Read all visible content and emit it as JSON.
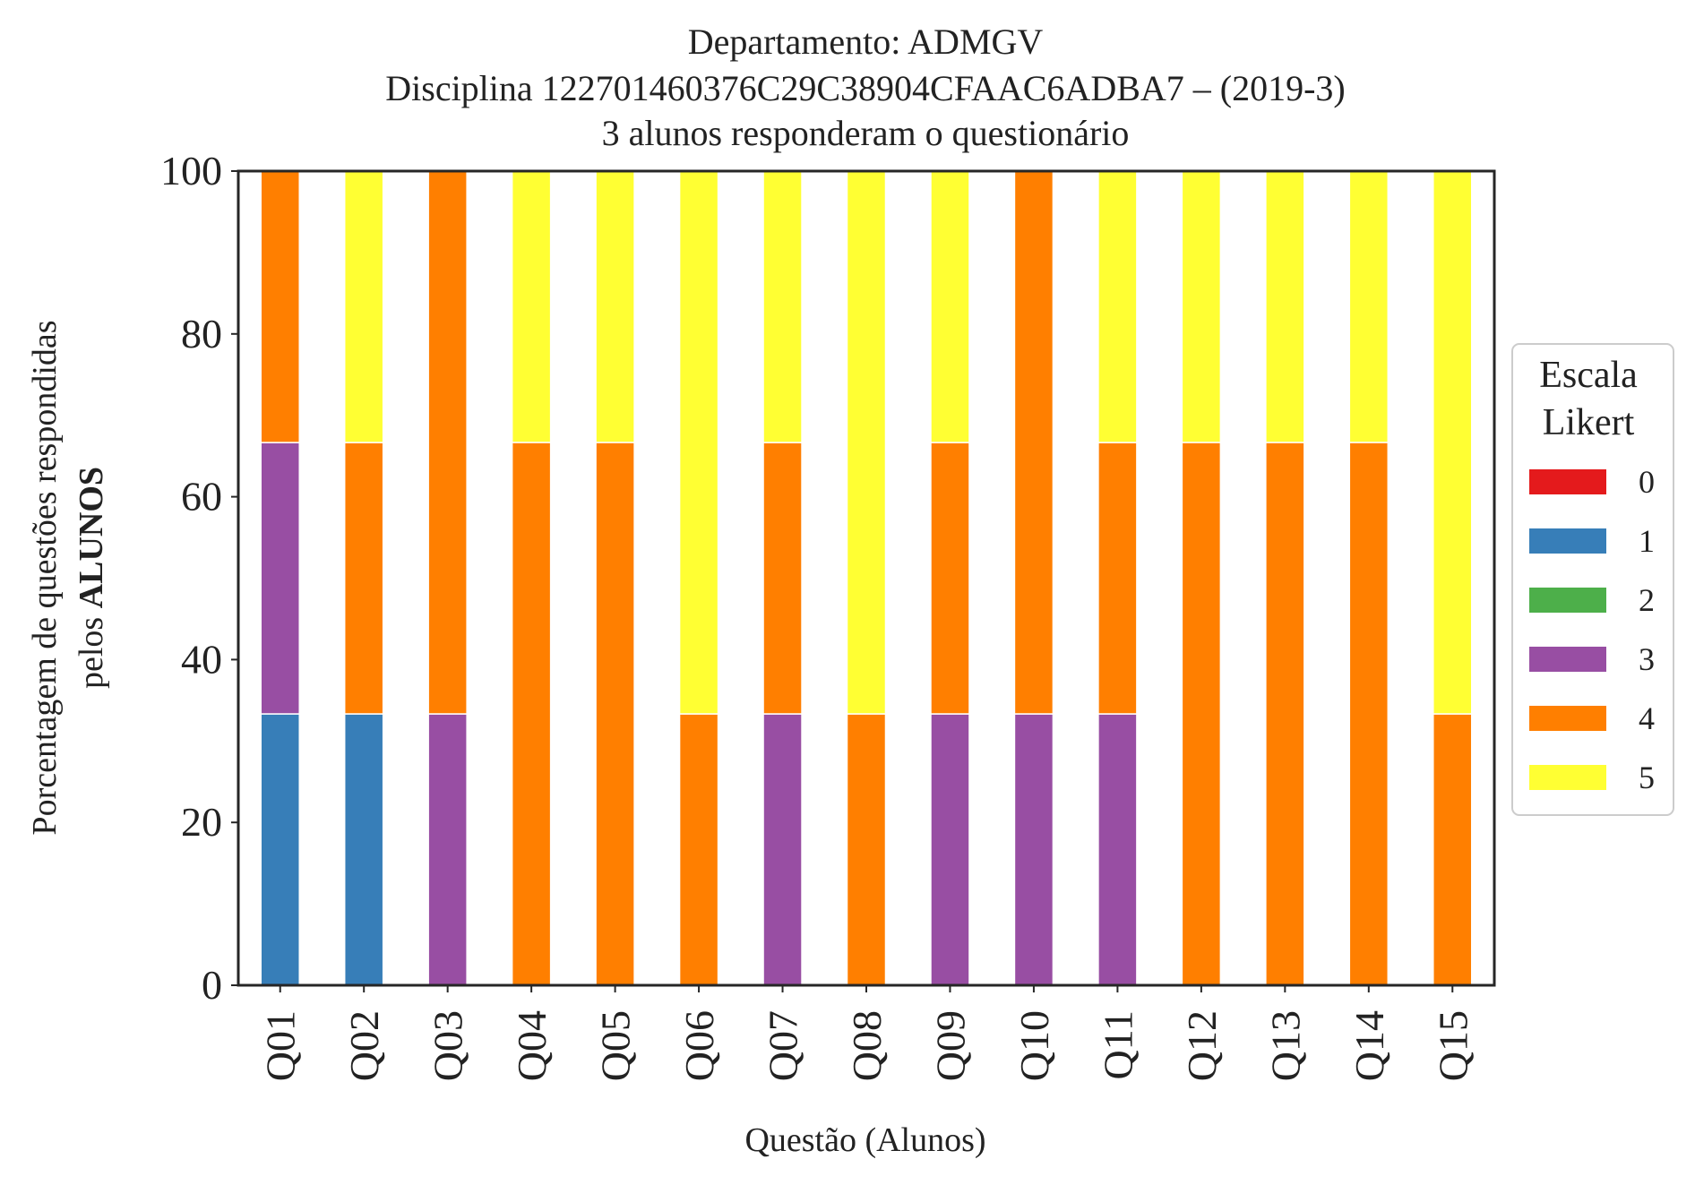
{
  "chart_data": {
    "type": "bar",
    "stacked": true,
    "title": {
      "line1": "Departamento: ADMGV",
      "line2": "Disciplina 122701460376C29C38904CFAAC6ADBA7 – (2019-3)",
      "line3": "3 alunos responderam o questionário"
    },
    "xlabel": "Questão (Alunos)",
    "ylabel": {
      "line1": "Porcentagem de questões respondidas",
      "line2_prefix": "pelos ",
      "line2_bold": "ALUNOS"
    },
    "ylim": [
      0,
      100
    ],
    "yticks": [
      "0",
      "20",
      "40",
      "60",
      "80",
      "100"
    ],
    "categories": [
      "Q01",
      "Q02",
      "Q03",
      "Q04",
      "Q05",
      "Q06",
      "Q07",
      "Q08",
      "Q09",
      "Q10",
      "Q11",
      "Q12",
      "Q13",
      "Q14",
      "Q15"
    ],
    "series": [
      {
        "name": "0",
        "color": "#e41a1c",
        "values": [
          0,
          0,
          0,
          0,
          0,
          0,
          0,
          0,
          0,
          0,
          0,
          0,
          0,
          0,
          0
        ]
      },
      {
        "name": "1",
        "color": "#377eb8",
        "values": [
          33.33,
          33.33,
          0,
          0,
          0,
          0,
          0,
          0,
          0,
          0,
          0,
          0,
          0,
          0,
          0
        ]
      },
      {
        "name": "2",
        "color": "#4daf4a",
        "values": [
          0,
          0,
          0,
          0,
          0,
          0,
          0,
          0,
          0,
          0,
          0,
          0,
          0,
          0,
          0
        ]
      },
      {
        "name": "3",
        "color": "#984ea3",
        "values": [
          33.33,
          0,
          33.33,
          0,
          0,
          0,
          33.33,
          0,
          33.33,
          33.33,
          33.33,
          0,
          0,
          0,
          0
        ]
      },
      {
        "name": "4",
        "color": "#ff7f00",
        "values": [
          33.33,
          33.33,
          66.67,
          66.67,
          66.67,
          33.33,
          33.33,
          33.33,
          33.33,
          66.67,
          33.33,
          66.67,
          66.67,
          66.67,
          33.33
        ]
      },
      {
        "name": "5",
        "color": "#ffff33",
        "values": [
          0,
          33.33,
          0,
          33.33,
          33.33,
          66.67,
          33.33,
          66.67,
          33.33,
          0,
          33.33,
          33.33,
          33.33,
          33.33,
          66.67
        ]
      }
    ],
    "legend": {
      "title_line1": "Escala",
      "title_line2": "Likert",
      "placement": "right-center"
    },
    "grid": false
  }
}
